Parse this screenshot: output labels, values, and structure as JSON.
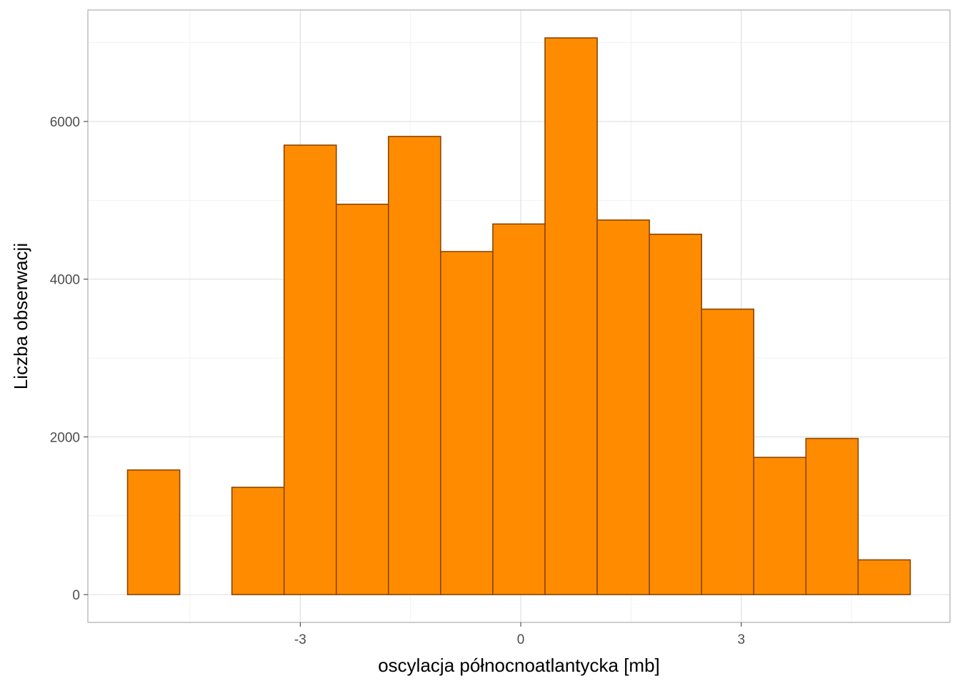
{
  "chart_data": {
    "type": "bar",
    "subtype": "histogram",
    "xlabel": "oscylacja północnoatlantycka [mb]",
    "ylabel": "Liczba obserwacji",
    "bin_width": 0.71,
    "bins": [
      {
        "x0": -5.35,
        "x1": -4.64,
        "count": 1580
      },
      {
        "x0": -4.64,
        "x1": -3.93,
        "count": 0
      },
      {
        "x0": -3.93,
        "x1": -3.22,
        "count": 1360
      },
      {
        "x0": -3.22,
        "x1": -2.51,
        "count": 5700
      },
      {
        "x0": -2.51,
        "x1": -1.8,
        "count": 4950
      },
      {
        "x0": -1.8,
        "x1": -1.09,
        "count": 5810
      },
      {
        "x0": -1.09,
        "x1": -0.38,
        "count": 4350
      },
      {
        "x0": -0.38,
        "x1": 0.33,
        "count": 4700
      },
      {
        "x0": 0.33,
        "x1": 1.04,
        "count": 7060
      },
      {
        "x0": 1.04,
        "x1": 1.75,
        "count": 4750
      },
      {
        "x0": 1.75,
        "x1": 2.46,
        "count": 4570
      },
      {
        "x0": 2.46,
        "x1": 3.17,
        "count": 3620
      },
      {
        "x0": 3.17,
        "x1": 3.88,
        "count": 1740
      },
      {
        "x0": 3.88,
        "x1": 4.59,
        "count": 1980
      },
      {
        "x0": 4.59,
        "x1": 5.3,
        "count": 440
      }
    ],
    "xlim": [
      -5.89,
      5.84
    ],
    "ylim": [
      -353,
      7414
    ],
    "x_ticks": [
      -3,
      0,
      3
    ],
    "x_tick_labels": [
      "-3",
      "0",
      "3"
    ],
    "y_ticks": [
      0,
      2000,
      4000,
      6000
    ],
    "y_tick_labels": [
      "0",
      "2000",
      "4000",
      "6000"
    ],
    "grid": true,
    "legend": "none",
    "colors": {
      "fill": "#ff8c00",
      "outline": "#8b4500",
      "panel_border": "#b3b3b3"
    }
  }
}
